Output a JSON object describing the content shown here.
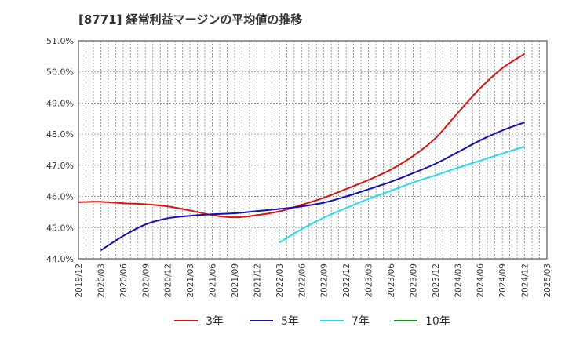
{
  "title": "[8771]  経常利益マージンの平均値の推移",
  "chart_data": {
    "type": "line",
    "title": "[8771]  経常利益マージンの平均値の推移",
    "xlabel": "",
    "ylabel": "",
    "grid": true,
    "legend_position": "bottom",
    "ylim": [
      44.0,
      51.0
    ],
    "y_ticks": [
      "44.0%",
      "45.0%",
      "46.0%",
      "47.0%",
      "48.0%",
      "49.0%",
      "50.0%",
      "51.0%"
    ],
    "x_ticks": [
      "2019/12",
      "2020/03",
      "2020/06",
      "2020/09",
      "2020/12",
      "2021/03",
      "2021/06",
      "2021/09",
      "2021/12",
      "2022/03",
      "2022/06",
      "2022/09",
      "2022/12",
      "2023/03",
      "2023/06",
      "2023/09",
      "2023/12",
      "2024/03",
      "2024/06",
      "2024/09",
      "2024/12",
      "2025/03"
    ],
    "series": [
      {
        "name": "3年",
        "color": "#dd1111",
        "x": [
          "2019/12",
          "2020/03",
          "2020/06",
          "2020/09",
          "2020/12",
          "2021/03",
          "2021/06",
          "2021/09",
          "2021/12",
          "2022/03",
          "2022/06",
          "2022/09",
          "2022/12",
          "2023/03",
          "2023/06",
          "2023/09",
          "2023/12",
          "2024/03",
          "2024/06",
          "2024/09",
          "2024/12"
        ],
        "values": [
          45.82,
          45.83,
          45.78,
          45.75,
          45.68,
          45.55,
          45.4,
          45.33,
          45.4,
          45.52,
          45.73,
          45.96,
          46.24,
          46.53,
          46.86,
          47.3,
          47.87,
          48.68,
          49.47,
          50.12,
          50.58
        ]
      },
      {
        "name": "5年",
        "color": "#1111bb",
        "x": [
          "2020/03",
          "2020/06",
          "2020/09",
          "2020/12",
          "2021/03",
          "2021/06",
          "2021/09",
          "2021/12",
          "2022/03",
          "2022/06",
          "2022/09",
          "2022/12",
          "2023/03",
          "2023/06",
          "2023/09",
          "2023/12",
          "2024/03",
          "2024/06",
          "2024/09",
          "2024/12"
        ],
        "values": [
          44.27,
          44.73,
          45.1,
          45.3,
          45.38,
          45.43,
          45.46,
          45.53,
          45.6,
          45.68,
          45.8,
          46.0,
          46.23,
          46.47,
          46.75,
          47.05,
          47.42,
          47.8,
          48.12,
          48.38
        ]
      },
      {
        "name": "7年",
        "color": "#22ddee",
        "x": [
          "2022/03",
          "2022/06",
          "2022/09",
          "2022/12",
          "2023/03",
          "2023/06",
          "2023/09",
          "2023/12",
          "2024/03",
          "2024/06",
          "2024/09",
          "2024/12"
        ],
        "values": [
          44.52,
          44.95,
          45.32,
          45.63,
          45.92,
          46.18,
          46.45,
          46.68,
          46.92,
          47.15,
          47.38,
          47.6
        ]
      },
      {
        "name": "10年",
        "color": "#119911",
        "x": [],
        "values": []
      }
    ]
  }
}
